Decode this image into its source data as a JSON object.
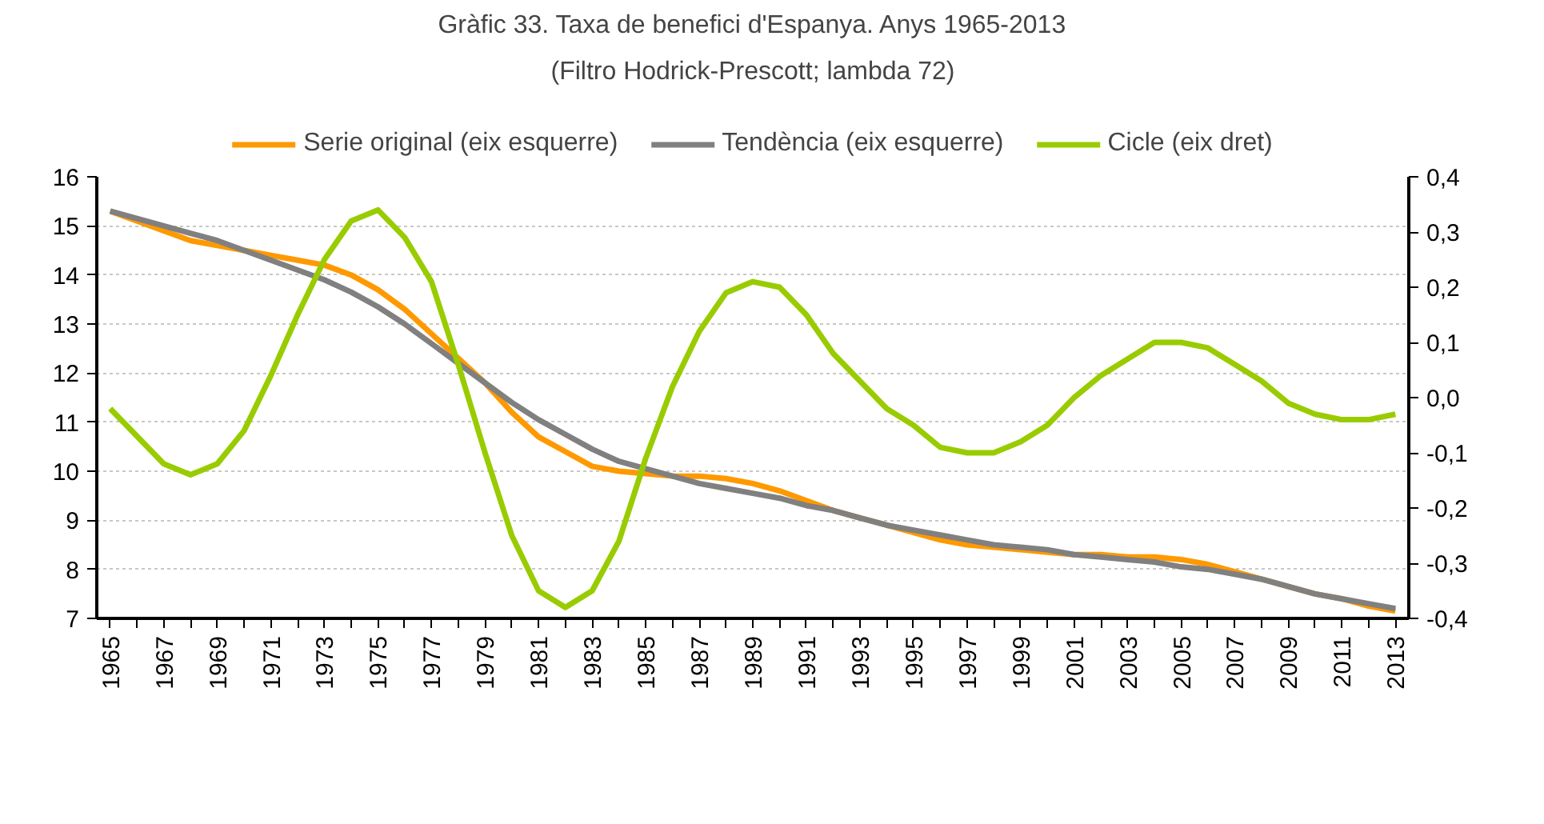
{
  "chart_data": {
    "type": "line",
    "title": "Gràfic 33. Taxa de benefici d'Espanya. Anys 1965-2013",
    "subtitle": "(Filtro Hodrick-Prescott; lambda 72)",
    "x": [
      1965,
      1966,
      1967,
      1968,
      1969,
      1970,
      1971,
      1972,
      1973,
      1974,
      1975,
      1976,
      1977,
      1978,
      1979,
      1980,
      1981,
      1982,
      1983,
      1984,
      1985,
      1986,
      1987,
      1988,
      1989,
      1990,
      1991,
      1992,
      1993,
      1994,
      1995,
      1996,
      1997,
      1998,
      1999,
      2000,
      2001,
      2002,
      2003,
      2004,
      2005,
      2006,
      2007,
      2008,
      2009,
      2010,
      2011,
      2012,
      2013
    ],
    "series": [
      {
        "name": "Serie original (eix esquerre)",
        "color": "#ff9900",
        "values": [
          15.3,
          15.1,
          14.9,
          14.7,
          14.6,
          14.5,
          14.4,
          14.3,
          14.2,
          14.0,
          13.7,
          13.3,
          12.8,
          12.3,
          11.8,
          11.2,
          10.7,
          10.4,
          10.1,
          10.0,
          9.95,
          9.9,
          9.9,
          9.85,
          9.75,
          9.6,
          9.4,
          9.2,
          9.05,
          8.9,
          8.75,
          8.6,
          8.5,
          8.45,
          8.4,
          8.35,
          8.3,
          8.3,
          8.25,
          8.25,
          8.2,
          8.1,
          7.95,
          7.8,
          7.65,
          7.5,
          7.4,
          7.25,
          7.15
        ]
      },
      {
        "name": "Tendència (eix esquerre)",
        "color": "#808080",
        "values": [
          15.3,
          15.15,
          15.0,
          14.85,
          14.7,
          14.5,
          14.3,
          14.1,
          13.9,
          13.65,
          13.35,
          13.0,
          12.6,
          12.2,
          11.8,
          11.4,
          11.05,
          10.75,
          10.45,
          10.2,
          10.05,
          9.9,
          9.75,
          9.65,
          9.55,
          9.45,
          9.3,
          9.2,
          9.05,
          8.9,
          8.8,
          8.7,
          8.6,
          8.5,
          8.45,
          8.4,
          8.3,
          8.25,
          8.2,
          8.15,
          8.05,
          8.0,
          7.9,
          7.8,
          7.65,
          7.5,
          7.4,
          7.3,
          7.2
        ]
      },
      {
        "name": "Cicle (eix dret)",
        "color": "#99cc00",
        "axis": "y2",
        "values": [
          -0.02,
          -0.07,
          -0.12,
          -0.14,
          -0.12,
          -0.06,
          0.04,
          0.15,
          0.25,
          0.32,
          0.34,
          0.29,
          0.21,
          0.06,
          -0.1,
          -0.25,
          -0.35,
          -0.38,
          -0.35,
          -0.26,
          -0.11,
          0.02,
          0.12,
          0.19,
          0.21,
          0.2,
          0.15,
          0.08,
          0.03,
          -0.02,
          -0.05,
          -0.09,
          -0.1,
          -0.1,
          -0.08,
          -0.05,
          0.0,
          0.04,
          0.07,
          0.1,
          0.1,
          0.09,
          0.06,
          0.03,
          -0.01,
          -0.03,
          -0.04,
          -0.04,
          -0.03
        ]
      }
    ],
    "xlim": [
      1964.5,
      2013.5
    ],
    "xticks": [
      {
        "value": 1965,
        "label": "1965"
      },
      {
        "value": 1966,
        "label": null
      },
      {
        "value": 1967,
        "label": "1967"
      },
      {
        "value": 1968,
        "label": null
      },
      {
        "value": 1969,
        "label": "1969"
      },
      {
        "value": 1970,
        "label": null
      },
      {
        "value": 1971,
        "label": "1971"
      },
      {
        "value": 1972,
        "label": null
      },
      {
        "value": 1973,
        "label": "1973"
      },
      {
        "value": 1974,
        "label": null
      },
      {
        "value": 1975,
        "label": "1975"
      },
      {
        "value": 1976,
        "label": null
      },
      {
        "value": 1977,
        "label": "1977"
      },
      {
        "value": 1978,
        "label": null
      },
      {
        "value": 1979,
        "label": "1979"
      },
      {
        "value": 1980,
        "label": null
      },
      {
        "value": 1981,
        "label": "1981"
      },
      {
        "value": 1982,
        "label": null
      },
      {
        "value": 1983,
        "label": "1983"
      },
      {
        "value": 1984,
        "label": null
      },
      {
        "value": 1985,
        "label": "1985"
      },
      {
        "value": 1986,
        "label": null
      },
      {
        "value": 1987,
        "label": "1987"
      },
      {
        "value": 1988,
        "label": null
      },
      {
        "value": 1989,
        "label": "1989"
      },
      {
        "value": 1990,
        "label": null
      },
      {
        "value": 1991,
        "label": "1991"
      },
      {
        "value": 1992,
        "label": null
      },
      {
        "value": 1993,
        "label": "1993"
      },
      {
        "value": 1994,
        "label": null
      },
      {
        "value": 1995,
        "label": "1995"
      },
      {
        "value": 1996,
        "label": null
      },
      {
        "value": 1997,
        "label": "1997"
      },
      {
        "value": 1998,
        "label": null
      },
      {
        "value": 1999,
        "label": "1999"
      },
      {
        "value": 2000,
        "label": null
      },
      {
        "value": 2001,
        "label": "2001"
      },
      {
        "value": 2002,
        "label": null
      },
      {
        "value": 2003,
        "label": "2003"
      },
      {
        "value": 2004,
        "label": null
      },
      {
        "value": 2005,
        "label": "2005"
      },
      {
        "value": 2006,
        "label": null
      },
      {
        "value": 2007,
        "label": "2007"
      },
      {
        "value": 2008,
        "label": null
      },
      {
        "value": 2009,
        "label": "2009"
      },
      {
        "value": 2010,
        "label": null
      },
      {
        "value": 2011,
        "label": "2011"
      },
      {
        "value": 2012,
        "label": null
      },
      {
        "value": 2013,
        "label": "2013"
      }
    ],
    "ylim": [
      7,
      16
    ],
    "yticks": [
      7,
      8,
      9,
      10,
      11,
      12,
      13,
      14,
      15,
      16
    ],
    "y2lim": [
      -0.4,
      0.4
    ],
    "y2ticks": [
      {
        "value": -0.4,
        "label": "-0,4"
      },
      {
        "value": -0.3,
        "label": "-0,3"
      },
      {
        "value": -0.2,
        "label": "-0,2"
      },
      {
        "value": -0.1,
        "label": "-0,1"
      },
      {
        "value": 0.0,
        "label": "0,0"
      },
      {
        "value": 0.1,
        "label": "0,1"
      },
      {
        "value": 0.2,
        "label": "0,2"
      },
      {
        "value": 0.3,
        "label": "0,3"
      },
      {
        "value": 0.4,
        "label": "0,4"
      }
    ],
    "grid": "y",
    "legend": "top",
    "line_style": "solid",
    "marker": "none"
  }
}
